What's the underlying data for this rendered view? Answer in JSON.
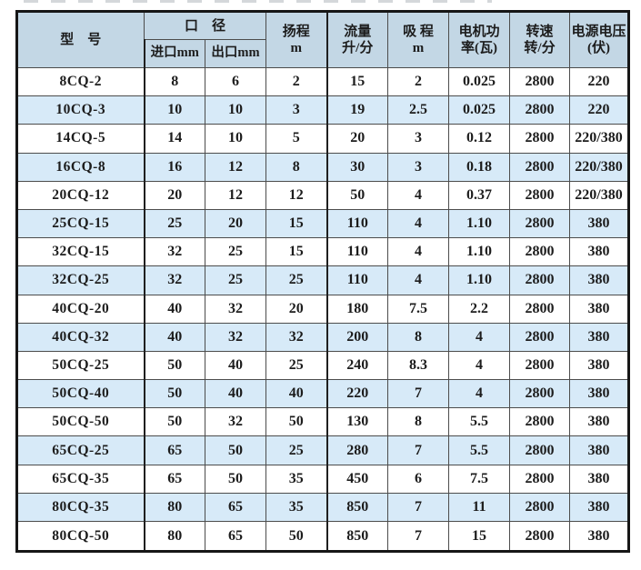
{
  "colors": {
    "header_bg": "#c3d7e5",
    "stripe_bg": "#d7eaf8",
    "outer_border": "#161616",
    "inner_border": "#4c4c4c",
    "text": "#1c1c1c"
  },
  "table": {
    "column_keys": [
      "model",
      "inlet",
      "outlet",
      "head",
      "flow",
      "suction",
      "power",
      "speed",
      "voltage"
    ],
    "header": {
      "model": "型　号",
      "diameter": "口　径",
      "inlet": "进口mm",
      "outlet": "出口mm",
      "head": {
        "line1": "扬程",
        "line2": "m"
      },
      "flow": {
        "line1": "流量",
        "line2": "升/分"
      },
      "suction": {
        "line1": "吸 程",
        "line2": "m"
      },
      "power": {
        "line1": "电机功",
        "line2": "率(瓦)"
      },
      "speed": {
        "line1": "转速",
        "line2": "转/分"
      },
      "voltage": {
        "line1": "电源电压",
        "line2": "(伏)"
      }
    },
    "rows": [
      [
        "8CQ-2",
        "8",
        "6",
        "2",
        "15",
        "2",
        "0.025",
        "2800",
        "220"
      ],
      [
        "10CQ-3",
        "10",
        "10",
        "3",
        "19",
        "2.5",
        "0.025",
        "2800",
        "220"
      ],
      [
        "14CQ-5",
        "14",
        "10",
        "5",
        "20",
        "3",
        "0.12",
        "2800",
        "220/380"
      ],
      [
        "16CQ-8",
        "16",
        "12",
        "8",
        "30",
        "3",
        "0.18",
        "2800",
        "220/380"
      ],
      [
        "20CQ-12",
        "20",
        "12",
        "12",
        "50",
        "4",
        "0.37",
        "2800",
        "220/380"
      ],
      [
        "25CQ-15",
        "25",
        "20",
        "15",
        "110",
        "4",
        "1.10",
        "2800",
        "380"
      ],
      [
        "32CQ-15",
        "32",
        "25",
        "15",
        "110",
        "4",
        "1.10",
        "2800",
        "380"
      ],
      [
        "32CQ-25",
        "32",
        "25",
        "25",
        "110",
        "4",
        "1.10",
        "2800",
        "380"
      ],
      [
        "40CQ-20",
        "40",
        "32",
        "20",
        "180",
        "7.5",
        "2.2",
        "2800",
        "380"
      ],
      [
        "40CQ-32",
        "40",
        "32",
        "32",
        "200",
        "8",
        "4",
        "2800",
        "380"
      ],
      [
        "50CQ-25",
        "50",
        "40",
        "25",
        "240",
        "8.3",
        "4",
        "2800",
        "380"
      ],
      [
        "50CQ-40",
        "50",
        "40",
        "40",
        "220",
        "7",
        "4",
        "2800",
        "380"
      ],
      [
        "50CQ-50",
        "50",
        "32",
        "50",
        "130",
        "8",
        "5.5",
        "2800",
        "380"
      ],
      [
        "65CQ-25",
        "65",
        "50",
        "25",
        "280",
        "7",
        "5.5",
        "2800",
        "380"
      ],
      [
        "65CQ-35",
        "65",
        "50",
        "35",
        "450",
        "6",
        "7.5",
        "2800",
        "380"
      ],
      [
        "80CQ-35",
        "80",
        "65",
        "35",
        "850",
        "7",
        "11",
        "2800",
        "380"
      ],
      [
        "80CQ-50",
        "80",
        "65",
        "50",
        "850",
        "7",
        "15",
        "2800",
        "380"
      ]
    ]
  }
}
